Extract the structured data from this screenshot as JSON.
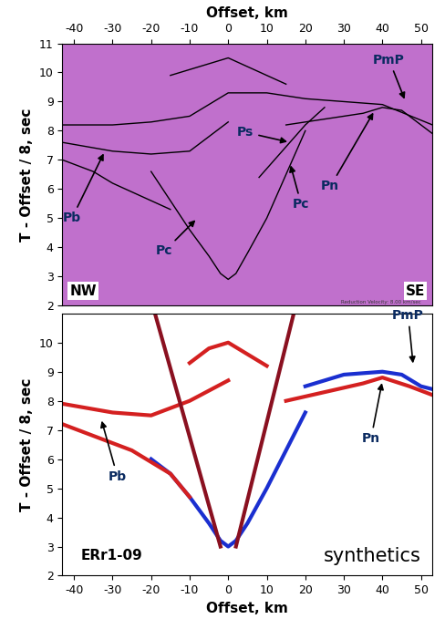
{
  "chart_data": [
    {
      "type": "line",
      "xlabel": "Offset, km",
      "ylabel": "T - Offset / 8, sec",
      "xlim": [
        -43,
        53
      ],
      "xticks": [
        -40,
        -30,
        -20,
        -10,
        0,
        10,
        20,
        30,
        40,
        50
      ],
      "ylim": [
        2,
        11
      ],
      "yticks": [
        2,
        3,
        4,
        5,
        6,
        7,
        8,
        9,
        10,
        11
      ],
      "texts": [
        "NW",
        "SE"
      ],
      "note": "Reduction Velocity: 8.00 km/sec",
      "series": [
        {
          "color": "#000000",
          "x": [
            -20,
            -15,
            -10,
            -5,
            -2,
            0,
            2,
            5,
            10,
            15,
            20
          ],
          "values": [
            6.6,
            5.6,
            4.6,
            3.7,
            3.1,
            2.9,
            3.1,
            3.8,
            5.0,
            6.5,
            8.0
          ]
        },
        {
          "color": "#000000",
          "x": [
            -43,
            -35,
            -30,
            -25,
            -20,
            -15
          ],
          "values": [
            7.0,
            6.6,
            6.2,
            5.9,
            5.6,
            5.3
          ]
        },
        {
          "color": "#000000",
          "x": [
            -43,
            -30,
            -20,
            -10,
            -5,
            0
          ],
          "values": [
            7.6,
            7.3,
            7.2,
            7.3,
            7.8,
            8.3
          ]
        },
        {
          "color": "#000000",
          "x": [
            -43,
            -30,
            -20,
            -10,
            0,
            10,
            20,
            30,
            40,
            53
          ],
          "values": [
            8.2,
            8.2,
            8.3,
            8.5,
            9.3,
            9.3,
            9.1,
            9.0,
            8.9,
            8.2
          ]
        },
        {
          "color": "#000000",
          "x": [
            -15,
            -5,
            0,
            5,
            15
          ],
          "values": [
            9.9,
            10.3,
            10.5,
            10.2,
            9.6
          ]
        },
        {
          "color": "#000000",
          "x": [
            8,
            12,
            16,
            20,
            25
          ],
          "values": [
            6.4,
            7.0,
            7.6,
            8.2,
            8.8
          ]
        },
        {
          "color": "#000000",
          "x": [
            15,
            25,
            35,
            40,
            45,
            53
          ],
          "values": [
            8.2,
            8.4,
            8.6,
            8.8,
            8.7,
            7.9
          ]
        }
      ],
      "annotations": [
        {
          "text": "Pb",
          "x": -32,
          "y": 7.3
        },
        {
          "text": "Pc",
          "x": -8,
          "y": 5.0
        },
        {
          "text": "Ps",
          "x": 16,
          "y": 7.6
        },
        {
          "text": "Pc",
          "x": 16,
          "y": 6.9
        },
        {
          "text": "Pn",
          "x": 38,
          "y": 8.7
        },
        {
          "text": "PmP",
          "x": 46,
          "y": 9.0
        }
      ]
    },
    {
      "type": "line",
      "xlabel": "Offset, km",
      "ylabel": "T - Offset / 8, sec",
      "xlim": [
        -43,
        53
      ],
      "xticks": [
        -40,
        -30,
        -20,
        -10,
        0,
        10,
        20,
        30,
        40,
        50
      ],
      "ylim": [
        2,
        11
      ],
      "yticks": [
        2,
        3,
        4,
        5,
        6,
        7,
        8,
        9,
        10
      ],
      "texts": [
        "ERr1-09",
        "synthetics"
      ],
      "series": [
        {
          "color": "#1a2fd0",
          "x": [
            -20,
            -15,
            -10,
            -5,
            -2,
            0,
            2,
            5,
            10,
            15,
            20
          ],
          "values": [
            6.0,
            5.5,
            4.7,
            3.8,
            3.2,
            3.0,
            3.2,
            3.8,
            5.0,
            6.3,
            7.6
          ]
        },
        {
          "color": "#d42020",
          "x": [
            -43,
            -35,
            -25,
            -15,
            -10
          ],
          "values": [
            7.2,
            6.8,
            6.3,
            5.5,
            4.7
          ]
        },
        {
          "color": "#d42020",
          "x": [
            -43,
            -30,
            -20,
            -10,
            0
          ],
          "values": [
            7.9,
            7.6,
            7.5,
            8.0,
            8.7
          ]
        },
        {
          "color": "#d42020",
          "x": [
            15,
            25,
            35,
            40,
            47,
            53
          ],
          "values": [
            8.0,
            8.3,
            8.6,
            8.8,
            8.5,
            8.2
          ]
        },
        {
          "color": "#1a2fd0",
          "x": [
            20,
            30,
            40,
            45,
            50,
            53
          ],
          "values": [
            8.5,
            8.9,
            9.0,
            8.9,
            8.5,
            8.4
          ]
        },
        {
          "color": "#8a1020",
          "x": [
            -2,
            -19
          ],
          "values": [
            3.0,
            11.0
          ]
        },
        {
          "color": "#8a1020",
          "x": [
            2,
            17
          ],
          "values": [
            3.0,
            11.0
          ]
        },
        {
          "color": "#d42020",
          "x": [
            -10,
            -5,
            0,
            5,
            10
          ],
          "values": [
            9.3,
            9.8,
            10.0,
            9.6,
            9.2
          ]
        }
      ],
      "annotations": [
        {
          "text": "Pb",
          "x": -33,
          "y": 7.4
        },
        {
          "text": "Pn",
          "x": 40,
          "y": 8.7
        },
        {
          "text": "PmP",
          "x": 48,
          "y": 9.2
        }
      ]
    }
  ]
}
